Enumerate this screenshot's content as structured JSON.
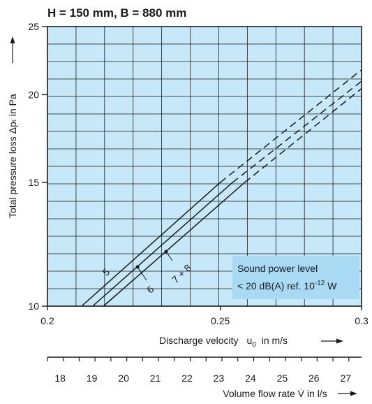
{
  "chart_data": {
    "type": "line",
    "title": "H = 150 mm, B = 880 mm",
    "xlabel_prefix": "Discharge velocity",
    "xlabel_var": "u",
    "xlabel_sub": "0",
    "xlabel_suffix": "in m/s",
    "ylabel": "Total pressure loss Δpₜ in Pa",
    "xlim": [
      0.2,
      0.3
    ],
    "ylim": [
      10,
      25
    ],
    "y_scale": "log",
    "x_scale": "log",
    "x_ticks": [
      {
        "value": 0.2,
        "label": "0.2"
      },
      {
        "value": 0.25,
        "label": "0.25"
      },
      {
        "value": 0.3,
        "label": "0.3"
      }
    ],
    "y_ticks": [
      {
        "value": 10,
        "label": "10"
      },
      {
        "value": 15,
        "label": "15"
      },
      {
        "value": 20,
        "label": "20"
      },
      {
        "value": 25,
        "label": "25"
      }
    ],
    "grid": true,
    "background": "#c6e8f8",
    "series": [
      {
        "name": "5",
        "points": [
          [
            0.209,
            10
          ],
          [
            0.25,
            15.0
          ]
        ],
        "dashed_to": [
          0.3,
          21.7
        ]
      },
      {
        "name": "6",
        "points": [
          [
            0.212,
            10
          ],
          [
            0.254,
            15.0
          ]
        ],
        "dashed_to": [
          0.3,
          20.9
        ]
      },
      {
        "name": "7 + 8",
        "points": [
          [
            0.215,
            10
          ],
          [
            0.258,
            15.0
          ]
        ],
        "dashed_to": [
          0.3,
          20.4
        ]
      }
    ],
    "annotation": {
      "line1": "Sound power level",
      "line2_prefix": "< 20 dB(A) ref. 10",
      "line2_sup": "-12",
      "line2_suffix": " W",
      "background": "#a8daf4"
    },
    "secondary_axis": {
      "label": "Volume flow rate V̇ in l/s",
      "ticks": [
        "18",
        "19",
        "20",
        "21",
        "22",
        "23",
        "24",
        "25",
        "26",
        "27"
      ],
      "values": [
        18,
        19,
        20,
        21,
        22,
        23,
        24,
        25,
        26,
        27
      ],
      "range": [
        17.6,
        27.5
      ]
    }
  }
}
